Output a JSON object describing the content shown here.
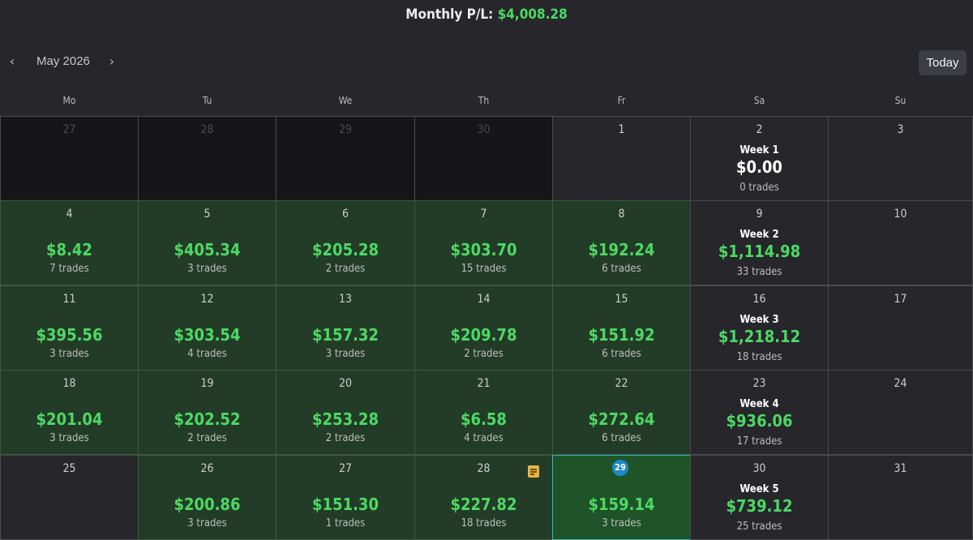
{
  "header": {
    "label": "Monthly P/L:",
    "value": "$4,008.28"
  },
  "nav": {
    "prev_icon": "chevron-left-icon",
    "month": "May 2026",
    "next_icon": "chevron-right-icon",
    "today_label": "Today"
  },
  "weekdays": [
    "Mo",
    "Tu",
    "We",
    "Th",
    "Fr",
    "Sa",
    "Su"
  ],
  "colors": {
    "profit": "#4cd964",
    "profit_cell": "#233c27",
    "today_border": "#37b4c7",
    "today_badge": "#1e88c8",
    "note": "#e8b443"
  },
  "weeks": [
    {
      "days": [
        {
          "day": "27",
          "type": "prev"
        },
        {
          "day": "28",
          "type": "prev"
        },
        {
          "day": "29",
          "type": "prev"
        },
        {
          "day": "30",
          "type": "prev"
        },
        {
          "day": "1",
          "type": "empty"
        }
      ],
      "summary": {
        "day": "2",
        "label": "Week 1",
        "amount": "$0.00",
        "trades": "0 trades",
        "zero": true
      },
      "sunday": "3"
    },
    {
      "days": [
        {
          "day": "4",
          "type": "green",
          "amount": "$8.42",
          "trades": "7 trades"
        },
        {
          "day": "5",
          "type": "green",
          "amount": "$405.34",
          "trades": "3 trades"
        },
        {
          "day": "6",
          "type": "green",
          "amount": "$205.28",
          "trades": "2 trades"
        },
        {
          "day": "7",
          "type": "green",
          "amount": "$303.70",
          "trades": "15 trades"
        },
        {
          "day": "8",
          "type": "green",
          "amount": "$192.24",
          "trades": "6 trades"
        }
      ],
      "summary": {
        "day": "9",
        "label": "Week 2",
        "amount": "$1,114.98",
        "trades": "33 trades"
      },
      "sunday": "10"
    },
    {
      "days": [
        {
          "day": "11",
          "type": "green",
          "amount": "$395.56",
          "trades": "3 trades"
        },
        {
          "day": "12",
          "type": "green",
          "amount": "$303.54",
          "trades": "4 trades"
        },
        {
          "day": "13",
          "type": "green",
          "amount": "$157.32",
          "trades": "3 trades"
        },
        {
          "day": "14",
          "type": "green",
          "amount": "$209.78",
          "trades": "2 trades"
        },
        {
          "day": "15",
          "type": "green",
          "amount": "$151.92",
          "trades": "6 trades"
        }
      ],
      "summary": {
        "day": "16",
        "label": "Week 3",
        "amount": "$1,218.12",
        "trades": "18 trades"
      },
      "sunday": "17"
    },
    {
      "days": [
        {
          "day": "18",
          "type": "green",
          "amount": "$201.04",
          "trades": "3 trades"
        },
        {
          "day": "19",
          "type": "green",
          "amount": "$202.52",
          "trades": "2 trades"
        },
        {
          "day": "20",
          "type": "green",
          "amount": "$253.28",
          "trades": "2 trades"
        },
        {
          "day": "21",
          "type": "green",
          "amount": "$6.58",
          "trades": "4 trades"
        },
        {
          "day": "22",
          "type": "green",
          "amount": "$272.64",
          "trades": "6 trades"
        }
      ],
      "summary": {
        "day": "23",
        "label": "Week 4",
        "amount": "$936.06",
        "trades": "17 trades"
      },
      "sunday": "24"
    },
    {
      "days": [
        {
          "day": "25",
          "type": "empty"
        },
        {
          "day": "26",
          "type": "green",
          "amount": "$200.86",
          "trades": "3 trades"
        },
        {
          "day": "27",
          "type": "green",
          "amount": "$151.30",
          "trades": "1 trades"
        },
        {
          "day": "28",
          "type": "green",
          "amount": "$227.82",
          "trades": "18 trades",
          "note": true
        },
        {
          "day": "29",
          "type": "today",
          "amount": "$159.14",
          "trades": "3 trades"
        }
      ],
      "summary": {
        "day": "30",
        "label": "Week 5",
        "amount": "$739.12",
        "trades": "25 trades"
      },
      "sunday": "31"
    }
  ]
}
